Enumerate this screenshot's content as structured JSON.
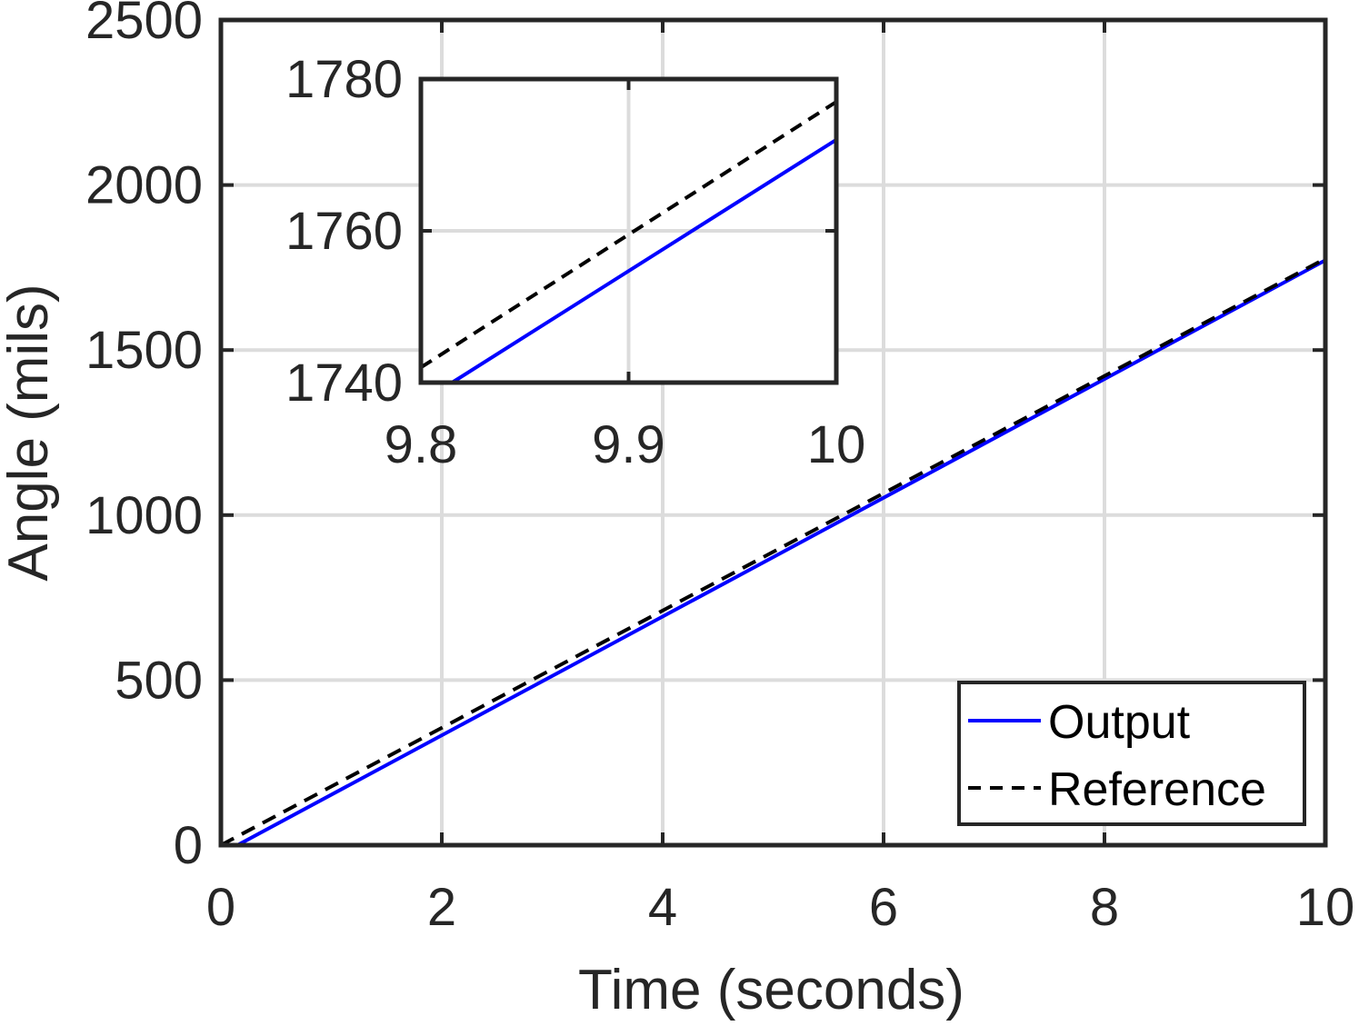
{
  "chart_data": [
    {
      "type": "line",
      "role": "main",
      "xlabel": "Time (seconds)",
      "ylabel": "Angle (mils)",
      "xlim": [
        0,
        10
      ],
      "ylim": [
        0,
        2500
      ],
      "xticks": [
        0,
        2,
        4,
        6,
        8,
        10
      ],
      "yticks": [
        0,
        500,
        1000,
        1500,
        2000,
        2500
      ],
      "grid": true,
      "legend_position": "bottom-right",
      "series": [
        {
          "name": "Output",
          "color": "#0000ff",
          "dash": "solid",
          "x": [
            0,
            0.15,
            10
          ],
          "y": [
            0,
            0,
            1772
          ]
        },
        {
          "name": "Reference",
          "color": "#000000",
          "dash": "dashed",
          "x": [
            0,
            10
          ],
          "y": [
            0,
            1777
          ]
        }
      ]
    },
    {
      "type": "line",
      "role": "inset",
      "xlim": [
        9.8,
        10
      ],
      "ylim": [
        1740,
        1780
      ],
      "xticks": [
        9.8,
        9.9,
        10
      ],
      "yticks": [
        1740,
        1760,
        1780
      ],
      "grid": true,
      "series": [
        {
          "name": "Output",
          "color": "#0000ff",
          "dash": "solid",
          "x": [
            9.815,
            10
          ],
          "y": [
            1740,
            1772
          ]
        },
        {
          "name": "Reference",
          "color": "#000000",
          "dash": "dashed",
          "x": [
            9.8,
            10
          ],
          "y": [
            1742,
            1777
          ]
        }
      ]
    }
  ]
}
